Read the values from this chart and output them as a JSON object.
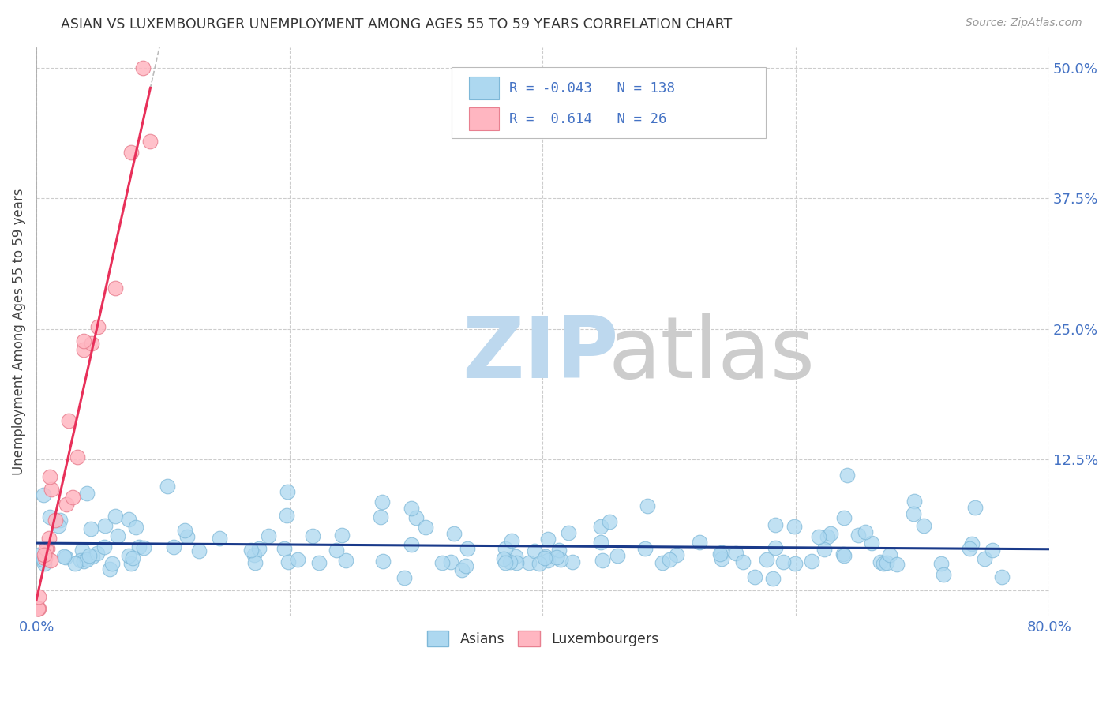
{
  "title": "ASIAN VS LUXEMBOURGER UNEMPLOYMENT AMONG AGES 55 TO 59 YEARS CORRELATION CHART",
  "source": "Source: ZipAtlas.com",
  "ylabel": "Unemployment Among Ages 55 to 59 years",
  "xlim": [
    0.0,
    0.8
  ],
  "ylim": [
    -0.025,
    0.52
  ],
  "yticks": [
    0.0,
    0.125,
    0.25,
    0.375,
    0.5
  ],
  "ytick_labels": [
    "",
    "12.5%",
    "25.0%",
    "37.5%",
    "50.0%"
  ],
  "xticks": [
    0.0,
    0.2,
    0.4,
    0.6,
    0.8
  ],
  "xtick_labels": [
    "0.0%",
    "",
    "",
    "",
    "80.0%"
  ],
  "asian_R": -0.043,
  "asian_N": 138,
  "lux_R": 0.614,
  "lux_N": 26,
  "asian_color": "#ADD8F0",
  "asian_edge": "#7EB8D8",
  "asian_line_color": "#1A3A8A",
  "lux_color": "#FFB6C1",
  "lux_edge": "#E88090",
  "lux_line_color": "#E8305A",
  "title_color": "#333333",
  "axis_color": "#4472C4",
  "grid_color": "#CCCCCC",
  "legend_R_color": "#4472C4",
  "source_color": "#999999",
  "asian_seed": 7,
  "lux_seed": 13
}
